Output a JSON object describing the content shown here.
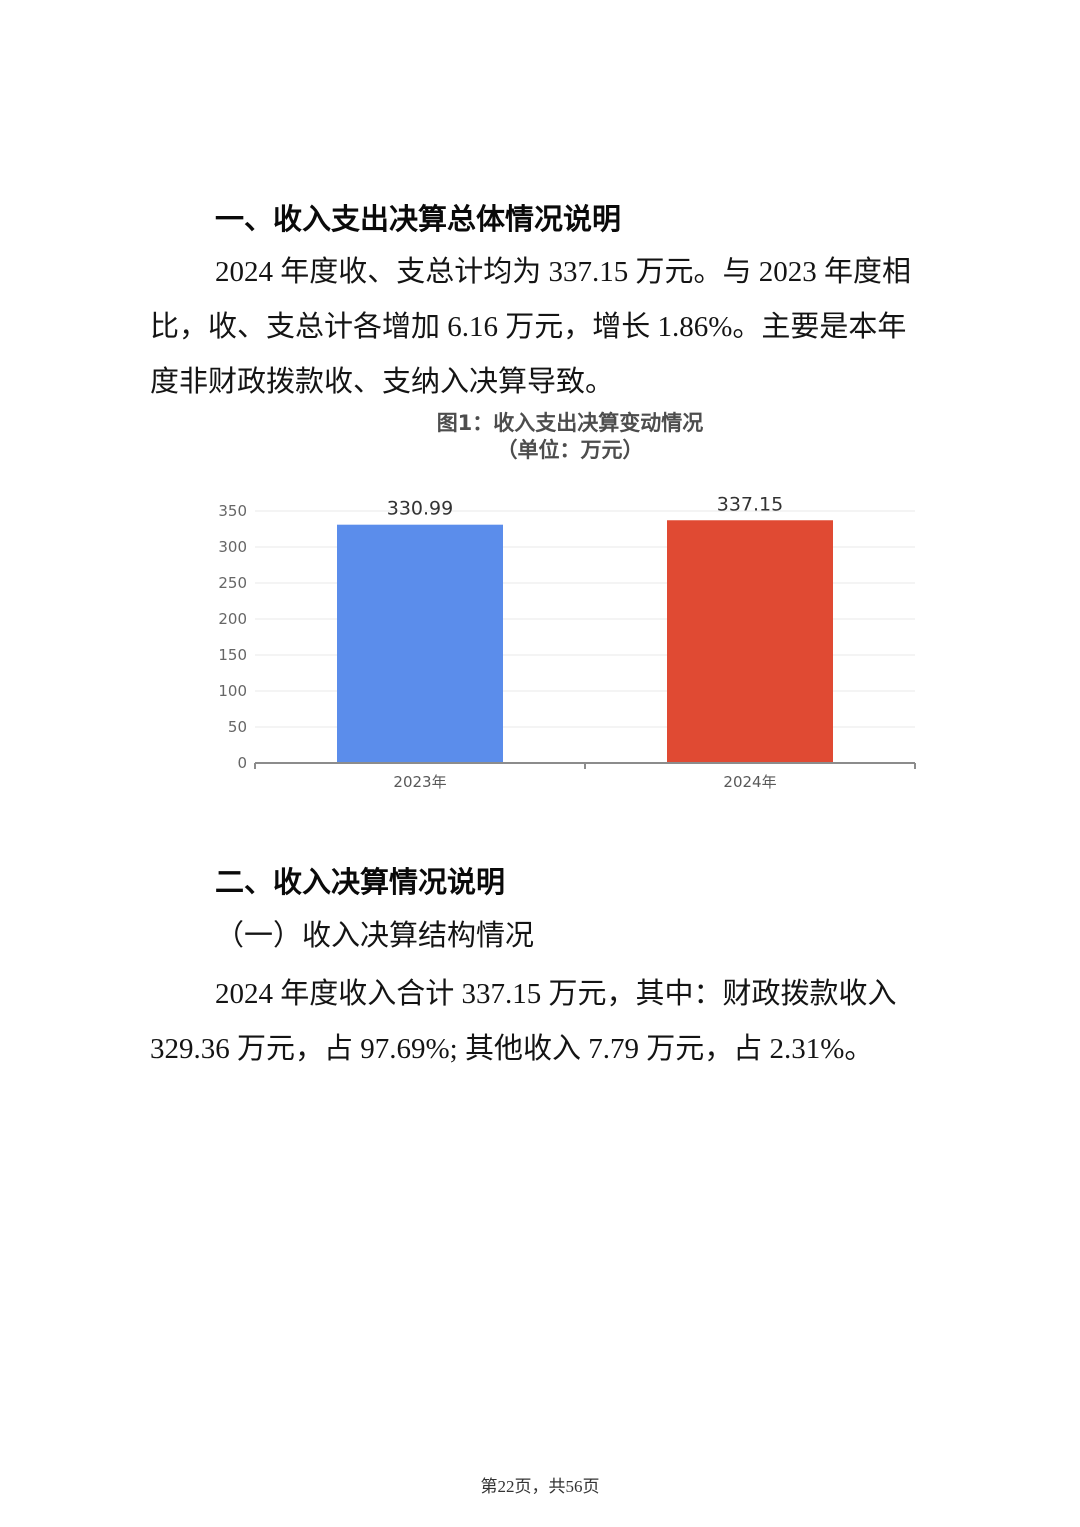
{
  "page": {
    "section1": {
      "heading": "一、收入支出决算总体情况说明",
      "paragraph_lines": [
        "2024 年度收、支总计均为 337.15 万元。与 2023 年度相",
        "比，收、支总计各增加 6.16 万元，增长 1.86%。主要是本年",
        "度非财政拨款收、支纳入决算导致。"
      ]
    },
    "section2": {
      "heading": "二、收入决算情况说明",
      "subheading": "（一）收入决算结构情况",
      "paragraph_lines": [
        "2024 年度收入合计 337.15 万元，其中：财政拨款收入",
        "329.36 万元，占 97.69%; 其他收入 7.79 万元，占 2.31%。"
      ]
    },
    "footer": "第22页，共56页"
  },
  "chart_data": {
    "type": "bar",
    "title": "图1：收入支出决算变动情况",
    "subtitle": "（单位：万元）",
    "categories": [
      "2023年",
      "2024年"
    ],
    "values": [
      330.99,
      337.15
    ],
    "data_labels": [
      "330.99",
      "337.15"
    ],
    "bar_colors": [
      "#5b8deb",
      "#e04a33"
    ],
    "ylim": [
      0,
      350
    ],
    "yticks": [
      0,
      50,
      100,
      150,
      200,
      250,
      300,
      350
    ],
    "grid": true,
    "legend": "none",
    "colors": {
      "gridline": "#e9e9e9",
      "axis": "#8c8c8c",
      "ytick_label": "#666666",
      "xtick_label": "#595959",
      "value_label": "#333333"
    }
  }
}
